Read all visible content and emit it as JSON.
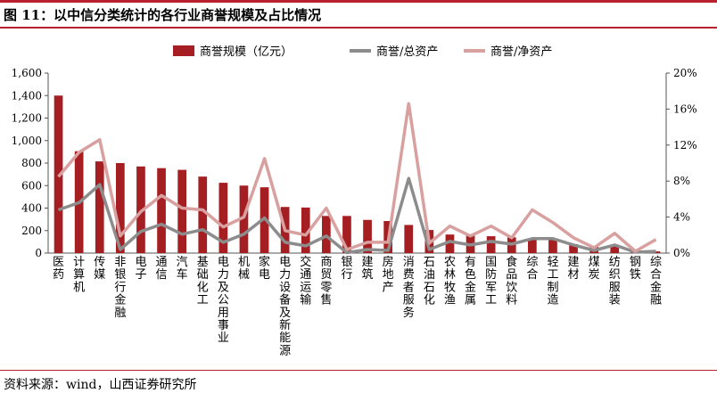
{
  "header": {
    "title": "图 11：以中信分类统计的各行业商誉规模及占比情况"
  },
  "footer": {
    "source": "资料来源：wind，山西证券研究所"
  },
  "colors": {
    "bar": "#a51e22",
    "total_line": "#8c8c8c",
    "net_line": "#d9a0a0",
    "accent": "#b8202e"
  },
  "chart_data": {
    "type": "bar",
    "title": "",
    "categories": [
      "医药",
      "计算机",
      "传媒",
      "非银行金融",
      "电子",
      "通信",
      "汽车",
      "基础化工",
      "电力及公用事业",
      "机械",
      "家电",
      "电力设备及新能源",
      "交通运输",
      "商贸零售",
      "银行",
      "建筑",
      "房地产",
      "消费者服务",
      "石油石化",
      "农林牧渔",
      "有色金属",
      "国防军工",
      "食品饮料",
      "综合",
      "轻工制造",
      "建材",
      "煤炭",
      "纺织服装",
      "钢铁",
      "综合金融"
    ],
    "series": [
      {
        "name": "商誉规模（亿元）",
        "type": "bar",
        "axis": "left",
        "values": [
          1400,
          905,
          815,
          800,
          770,
          755,
          740,
          680,
          625,
          600,
          585,
          410,
          405,
          330,
          330,
          295,
          285,
          250,
          205,
          165,
          155,
          150,
          140,
          130,
          125,
          80,
          55,
          75,
          15,
          15
        ]
      },
      {
        "name": "商誉/总资产",
        "type": "line",
        "axis": "right",
        "values": [
          4.8,
          5.6,
          7.6,
          0.4,
          2.4,
          3.2,
          2.1,
          2.6,
          1.2,
          2.1,
          3.9,
          1.2,
          0.8,
          1.9,
          0.05,
          0.4,
          0.3,
          8.3,
          0.4,
          1.3,
          0.9,
          1.3,
          1.0,
          1.6,
          1.6,
          0.9,
          0.3,
          0.9,
          0.1,
          0.2
        ]
      },
      {
        "name": "商誉/净资产",
        "type": "line",
        "axis": "right",
        "values": [
          8.5,
          11.2,
          12.6,
          1.9,
          4.6,
          6.4,
          5.0,
          4.8,
          2.9,
          4.0,
          10.5,
          2.5,
          2.0,
          5.0,
          0.4,
          1.2,
          1.2,
          16.6,
          1.1,
          3.0,
          1.9,
          3.0,
          1.7,
          4.8,
          3.4,
          1.7,
          0.6,
          2.2,
          0.2,
          1.5
        ]
      }
    ],
    "y_left": {
      "min": 0,
      "max": 1600,
      "step": 200,
      "tick_labels": [
        "0",
        "200",
        "400",
        "600",
        "800",
        "1,000",
        "1,200",
        "1,400",
        "1,600"
      ]
    },
    "y_right": {
      "min": 0,
      "max": 20,
      "step": 4,
      "tick_labels": [
        "0%",
        "4%",
        "8%",
        "12%",
        "16%",
        "20%"
      ]
    },
    "legend_position": "top-center",
    "grid": false
  }
}
